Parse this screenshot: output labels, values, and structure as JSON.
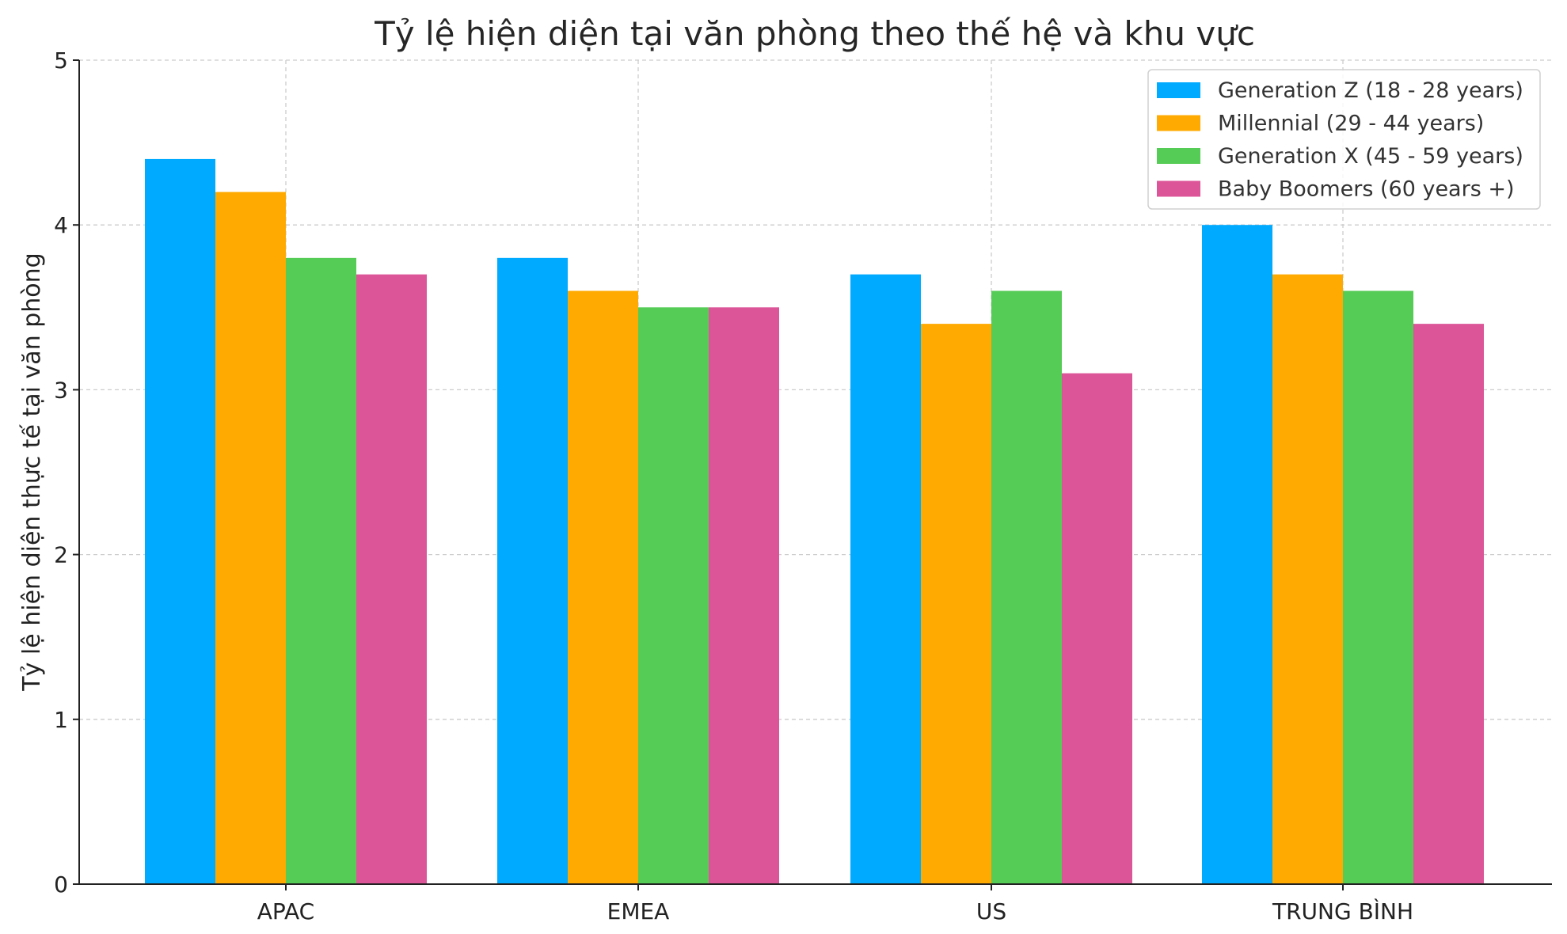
{
  "chart_data": {
    "type": "bar",
    "title": "Tỷ lệ hiện diện tại văn phòng theo thế hệ và khu vực",
    "xlabel": "",
    "ylabel": "Tỷ lệ hiện diện thực tế tại văn phòng",
    "categories": [
      "APAC",
      "EMEA",
      "US",
      "TRUNG BÌNH"
    ],
    "ylim": [
      0,
      5
    ],
    "yticks": [
      "0",
      "1",
      "2",
      "3",
      "4",
      "5"
    ],
    "grid": true,
    "legend_position": "top-right",
    "series": [
      {
        "name": "Generation Z (18 - 28 years)",
        "color": "#00aaff",
        "values": [
          4.4,
          3.8,
          3.7,
          4.0
        ]
      },
      {
        "name": "Millennial (29 - 44 years)",
        "color": "#ffaa00",
        "values": [
          4.2,
          3.6,
          3.4,
          3.7
        ]
      },
      {
        "name": "Generation X (45 - 59 years)",
        "color": "#55cc55",
        "values": [
          3.8,
          3.5,
          3.6,
          3.6
        ]
      },
      {
        "name": "Baby Boomers (60 years +)",
        "color": "#dd5599",
        "values": [
          3.7,
          3.5,
          3.1,
          3.4
        ]
      }
    ]
  }
}
